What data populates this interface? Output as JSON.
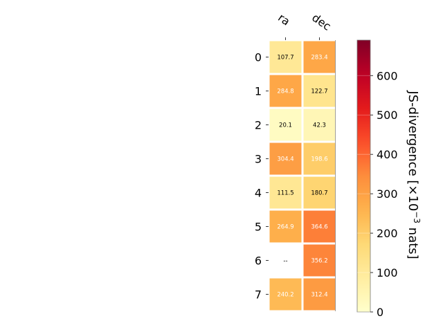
{
  "chart_data": {
    "type": "heatmap",
    "columns": [
      "ra",
      "dec"
    ],
    "rows": [
      "0",
      "1",
      "2",
      "3",
      "4",
      "5",
      "6",
      "7"
    ],
    "values": [
      [
        107.7,
        283.4
      ],
      [
        284.8,
        122.7
      ],
      [
        20.1,
        42.3
      ],
      [
        304.4,
        198.6
      ],
      [
        111.5,
        180.7
      ],
      [
        264.9,
        364.6
      ],
      [
        null,
        356.2
      ],
      [
        240.2,
        312.4
      ]
    ],
    "cell_labels": [
      [
        "107.7",
        "283.4"
      ],
      [
        "284.8",
        "122.7"
      ],
      [
        "20.1",
        "42.3"
      ],
      [
        "304.4",
        "198.6"
      ],
      [
        "111.5",
        "180.7"
      ],
      [
        "264.9",
        "364.6"
      ],
      [
        "--",
        "356.2"
      ],
      [
        "240.2",
        "312.4"
      ]
    ],
    "colormap": "YlOrRd",
    "colorbar": {
      "label_prefix": "JS-divergence [×10",
      "label_exponent": "−3",
      "label_suffix": " nats]",
      "range": [
        0,
        690
      ],
      "ticks": [
        "0",
        "100",
        "200",
        "300",
        "400",
        "500",
        "600"
      ]
    }
  }
}
